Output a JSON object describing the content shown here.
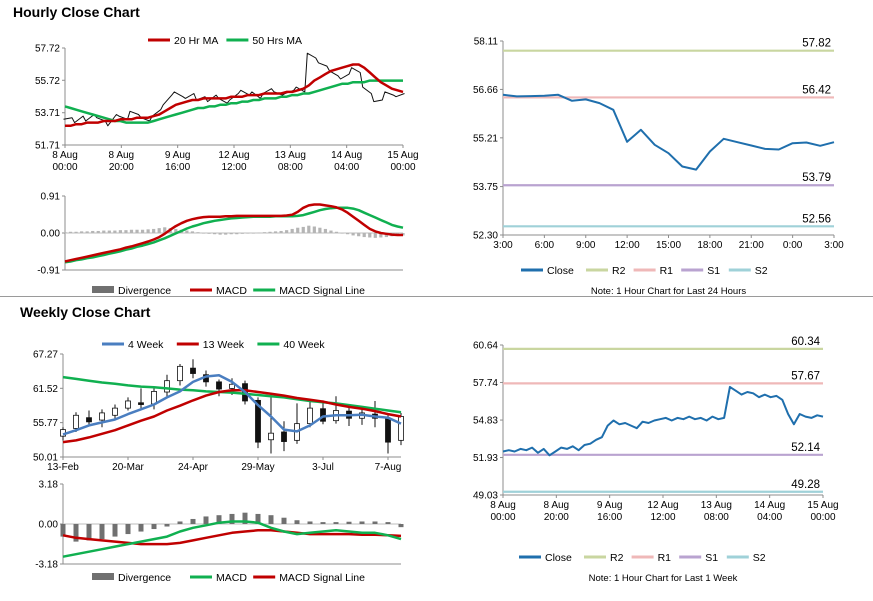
{
  "titles": {
    "hourly": "Hourly Close Chart",
    "weekly": "Weekly Close Chart"
  },
  "colors": {
    "ma_short": "#c00000",
    "ma_long": "#10b050",
    "week4": "#4a7ec0",
    "close": "#1f6fad",
    "r2": "#c9d6a0",
    "r1": "#efb8b8",
    "s1": "#b9a3d0",
    "s2": "#9fd1d8",
    "bar": "#707070"
  },
  "chart_data": [
    {
      "id": "hourly_price",
      "type": "line",
      "legend": [
        "20 Hr MA",
        "50 Hrs MA"
      ],
      "ylim": [
        51.71,
        57.72
      ],
      "yticks": [
        "57.72",
        "55.72",
        "53.71",
        "51.71"
      ],
      "xticks": [
        [
          "8 Aug",
          "00:00"
        ],
        [
          "8 Aug",
          "20:00"
        ],
        [
          "9 Aug",
          "16:00"
        ],
        [
          "12 Aug",
          "12:00"
        ],
        [
          "13 Aug",
          "08:00"
        ],
        [
          "14 Aug",
          "04:00"
        ],
        [
          "15 Aug",
          "00:00"
        ]
      ],
      "close": [
        53.3,
        53.4,
        53.1,
        53.5,
        53.2,
        53.6,
        53.4,
        53.2,
        52.9,
        53.6,
        53.5,
        53.3,
        53.8,
        53.6,
        53.4,
        53.2,
        53.5,
        53.9,
        54.2,
        54.8,
        55.0,
        54.7,
        54.6,
        54.9,
        54.5,
        54.7,
        54.4,
        54.8,
        54.6,
        54.3,
        54.5,
        54.9,
        55.1,
        54.8,
        55.0,
        54.6,
        54.9,
        55.2,
        55.0,
        54.8,
        54.9,
        55.1,
        55.3,
        55.0,
        57.4,
        57.1,
        56.8,
        56.6,
        56.3,
        56.0,
        55.8,
        56.1,
        56.5,
        56.2,
        55.3,
        54.9,
        54.4,
        54.5,
        55.0,
        54.8,
        54.7,
        54.9
      ],
      "series": [
        {
          "name": "20 Hr MA",
          "values": [
            52.9,
            52.9,
            53.0,
            53.0,
            53.1,
            53.1,
            53.1,
            53.2,
            53.2,
            53.2,
            53.3,
            53.3,
            53.3,
            53.4,
            53.4,
            53.4,
            53.5,
            53.6,
            53.8,
            54.0,
            54.2,
            54.3,
            54.4,
            54.5,
            54.5,
            54.6,
            54.6,
            54.6,
            54.6,
            54.6,
            54.7,
            54.7,
            54.7,
            54.8,
            54.8,
            54.8,
            54.9,
            54.9,
            54.9,
            54.9,
            55.0,
            55.0,
            55.1,
            55.2,
            55.4,
            55.7,
            55.9,
            56.1,
            56.3,
            56.4,
            56.5,
            56.6,
            56.7,
            56.7,
            56.5,
            56.2,
            55.9,
            55.6,
            55.4,
            55.2,
            55.1,
            55.0
          ]
        },
        {
          "name": "50 Hrs MA",
          "values": [
            54.1,
            54.0,
            53.9,
            53.8,
            53.7,
            53.6,
            53.5,
            53.4,
            53.3,
            53.2,
            53.2,
            53.1,
            53.1,
            53.1,
            53.1,
            53.1,
            53.2,
            53.3,
            53.4,
            53.5,
            53.6,
            53.7,
            53.8,
            53.9,
            54.0,
            54.0,
            54.1,
            54.1,
            54.2,
            54.2,
            54.3,
            54.3,
            54.4,
            54.4,
            54.5,
            54.5,
            54.6,
            54.6,
            54.6,
            54.7,
            54.7,
            54.8,
            54.8,
            54.9,
            54.9,
            55.0,
            55.1,
            55.2,
            55.3,
            55.4,
            55.5,
            55.5,
            55.6,
            55.6,
            55.6,
            55.7,
            55.7,
            55.7,
            55.7,
            55.7,
            55.7,
            55.7
          ]
        }
      ]
    },
    {
      "id": "hourly_macd",
      "type": "bar",
      "legend": [
        "Divergence",
        "MACD",
        "MACD Signal Line"
      ],
      "ylim": [
        -0.91,
        0.91
      ],
      "yticks": [
        "0.91",
        "0.00",
        "-0.91"
      ],
      "divergence": [
        0.02,
        0.03,
        0.03,
        0.04,
        0.04,
        0.05,
        0.05,
        0.06,
        0.06,
        0.06,
        0.07,
        0.07,
        0.08,
        0.08,
        0.08,
        0.09,
        0.1,
        0.12,
        0.14,
        0.12,
        0.1,
        0.08,
        0.06,
        0.04,
        0.02,
        0.0,
        -0.02,
        -0.03,
        -0.04,
        -0.04,
        -0.03,
        -0.03,
        -0.02,
        -0.01,
        0.0,
        0.01,
        0.02,
        0.03,
        0.04,
        0.05,
        0.07,
        0.1,
        0.13,
        0.15,
        0.18,
        0.16,
        0.13,
        0.1,
        0.06,
        0.03,
        0.0,
        -0.03,
        -0.06,
        -0.08,
        -0.1,
        -0.11,
        -0.12,
        -0.11,
        -0.1,
        -0.08,
        -0.07,
        -0.06
      ],
      "series": [
        {
          "name": "MACD",
          "values": [
            -0.7,
            -0.67,
            -0.64,
            -0.61,
            -0.58,
            -0.55,
            -0.52,
            -0.49,
            -0.46,
            -0.43,
            -0.4,
            -0.36,
            -0.33,
            -0.29,
            -0.25,
            -0.21,
            -0.16,
            -0.1,
            -0.02,
            0.08,
            0.17,
            0.24,
            0.3,
            0.34,
            0.37,
            0.39,
            0.4,
            0.4,
            0.4,
            0.41,
            0.41,
            0.42,
            0.42,
            0.42,
            0.42,
            0.42,
            0.42,
            0.42,
            0.42,
            0.42,
            0.43,
            0.45,
            0.52,
            0.62,
            0.68,
            0.7,
            0.7,
            0.68,
            0.66,
            0.63,
            0.58,
            0.5,
            0.4,
            0.3,
            0.2,
            0.1,
            0.04,
            0.0,
            -0.02,
            -0.04,
            -0.05,
            -0.05
          ]
        },
        {
          "name": "MACD Signal Line",
          "values": [
            -0.72,
            -0.7,
            -0.67,
            -0.65,
            -0.62,
            -0.6,
            -0.57,
            -0.54,
            -0.51,
            -0.48,
            -0.45,
            -0.41,
            -0.38,
            -0.34,
            -0.31,
            -0.27,
            -0.23,
            -0.18,
            -0.13,
            -0.07,
            -0.01,
            0.05,
            0.11,
            0.16,
            0.2,
            0.24,
            0.27,
            0.3,
            0.32,
            0.34,
            0.36,
            0.37,
            0.38,
            0.39,
            0.4,
            0.4,
            0.4,
            0.4,
            0.41,
            0.41,
            0.41,
            0.41,
            0.42,
            0.44,
            0.48,
            0.52,
            0.56,
            0.59,
            0.61,
            0.62,
            0.62,
            0.62,
            0.6,
            0.56,
            0.5,
            0.44,
            0.38,
            0.32,
            0.26,
            0.2,
            0.16,
            0.13
          ]
        }
      ]
    },
    {
      "id": "hourly_levels",
      "type": "line",
      "note": "Note: 1 Hour Chart for Last 24 Hours",
      "legend": [
        "Close",
        "R2",
        "R1",
        "S1",
        "S2"
      ],
      "ylim": [
        52.3,
        58.11
      ],
      "yticks": [
        "58.11",
        "56.66",
        "55.21",
        "53.75",
        "52.30"
      ],
      "xticks": [
        "3:00",
        "6:00",
        "9:00",
        "12:00",
        "15:00",
        "18:00",
        "21:00",
        "0:00",
        "3:00"
      ],
      "x": [
        0,
        1,
        2,
        3,
        4,
        5,
        6,
        7,
        8,
        9,
        10,
        11,
        12,
        13,
        14,
        15,
        16,
        17,
        18,
        19,
        20,
        21,
        22,
        23,
        24
      ],
      "close": [
        56.5,
        56.45,
        56.46,
        56.47,
        56.5,
        56.32,
        56.36,
        56.25,
        56.05,
        55.09,
        55.45,
        55.0,
        54.75,
        54.35,
        54.26,
        54.8,
        55.18,
        55.08,
        54.98,
        54.88,
        54.86,
        55.05,
        55.07,
        54.97,
        55.08
      ],
      "levels": {
        "R2": 57.82,
        "R1": 56.42,
        "S1": 53.79,
        "S2": 52.56
      },
      "level_labels": [
        "57.82",
        "56.42",
        "53.79",
        "52.56"
      ]
    },
    {
      "id": "weekly_price",
      "type": "line",
      "legend": [
        "4 Week",
        "13 Week",
        "40 Week"
      ],
      "ylim": [
        50.01,
        67.27
      ],
      "yticks": [
        "67.27",
        "61.52",
        "55.77",
        "50.01"
      ],
      "xticks": [
        "13-Feb",
        "20-Mar",
        "24-Apr",
        "29-May",
        "3-Jul",
        "7-Aug"
      ],
      "candles": [
        [
          53.5,
          54.6,
          52.8,
          55.0
        ],
        [
          54.8,
          57.0,
          54.2,
          57.5
        ],
        [
          56.6,
          55.9,
          55.2,
          57.8
        ],
        [
          56.2,
          57.4,
          55.0,
          58.0
        ],
        [
          57.0,
          58.2,
          56.2,
          58.8
        ],
        [
          58.2,
          59.4,
          57.8,
          60.0
        ],
        [
          59.1,
          58.8,
          58.1,
          61.5
        ],
        [
          58.9,
          61.0,
          58.0,
          61.6
        ],
        [
          60.9,
          62.8,
          60.0,
          63.8
        ],
        [
          62.8,
          65.2,
          62.0,
          65.6
        ],
        [
          64.9,
          64.0,
          63.2,
          66.4
        ],
        [
          63.8,
          62.6,
          61.8,
          64.5
        ],
        [
          62.6,
          61.4,
          60.2,
          63.0
        ],
        [
          61.5,
          62.2,
          60.4,
          63.2
        ],
        [
          62.3,
          59.4,
          58.8,
          62.8
        ],
        [
          59.5,
          52.5,
          51.5,
          60.0
        ],
        [
          52.9,
          54.0,
          50.6,
          60.8
        ],
        [
          54.2,
          52.6,
          51.0,
          56.0
        ],
        [
          52.8,
          55.6,
          52.2,
          59.0
        ],
        [
          55.6,
          58.2,
          55.0,
          59.3
        ],
        [
          58.1,
          56.0,
          55.5,
          59.5
        ],
        [
          56.1,
          57.8,
          55.6,
          60.2
        ],
        [
          57.7,
          56.5,
          55.2,
          58.6
        ],
        [
          56.5,
          57.4,
          55.4,
          58.4
        ],
        [
          57.2,
          56.5,
          55.0,
          59.4
        ],
        [
          56.5,
          52.5,
          50.6,
          57.0
        ],
        [
          52.8,
          56.8,
          52.0,
          57.4
        ]
      ],
      "series": [
        {
          "name": "4 Week",
          "values": [
            53.8,
            54.5,
            55.3,
            55.8,
            56.3,
            57.2,
            58.0,
            58.8,
            60.0,
            61.0,
            62.6,
            63.5,
            63.7,
            62.6,
            60.9,
            58.7,
            56.8,
            54.6,
            54.3,
            55.3,
            56.8,
            57.0,
            57.0,
            57.1,
            56.8,
            56.6,
            55.6
          ]
        },
        {
          "name": "13 Week",
          "values": [
            52.5,
            52.8,
            53.3,
            53.9,
            54.5,
            55.3,
            56.1,
            56.8,
            57.8,
            58.6,
            59.5,
            60.3,
            60.9,
            61.2,
            61.2,
            60.9,
            60.6,
            60.3,
            59.9,
            59.6,
            59.3,
            58.8,
            58.4,
            58.1,
            57.7,
            57.2,
            56.8
          ]
        },
        {
          "name": "40 Week",
          "values": [
            63.4,
            63.1,
            62.8,
            62.5,
            62.3,
            62.0,
            61.8,
            61.7,
            61.5,
            61.3,
            61.2,
            61.0,
            60.9,
            60.8,
            60.6,
            60.4,
            60.2,
            60.0,
            59.7,
            59.4,
            59.2,
            59.0,
            58.7,
            58.4,
            58.1,
            57.8,
            57.5
          ]
        }
      ]
    },
    {
      "id": "weekly_macd",
      "type": "bar",
      "legend": [
        "Divergence",
        "MACD",
        "MACD Signal Line"
      ],
      "ylim": [
        -3.18,
        3.18
      ],
      "yticks": [
        "3.18",
        "0.00",
        "-3.18"
      ],
      "divergence": [
        -1.0,
        -1.4,
        -1.3,
        -1.2,
        -1.0,
        -0.8,
        -0.6,
        -0.4,
        -0.2,
        0.2,
        0.4,
        0.6,
        0.7,
        0.8,
        0.9,
        0.8,
        0.7,
        0.5,
        0.3,
        0.2,
        0.15,
        0.15,
        0.18,
        0.2,
        0.2,
        0.15,
        -0.25
      ],
      "series": [
        {
          "name": "MACD",
          "values": [
            -2.6,
            -2.4,
            -2.2,
            -2.0,
            -1.8,
            -1.6,
            -1.4,
            -1.2,
            -1.0,
            -0.6,
            -0.3,
            -0.1,
            0.1,
            0.2,
            0.2,
            0.1,
            -0.3,
            -0.6,
            -0.8,
            -0.7,
            -0.6,
            -0.5,
            -0.6,
            -0.7,
            -0.7,
            -0.9,
            -1.2
          ]
        },
        {
          "name": "MACD Signal Line",
          "values": [
            -0.9,
            -1.1,
            -1.2,
            -1.3,
            -1.4,
            -1.5,
            -1.6,
            -1.6,
            -1.6,
            -1.5,
            -1.3,
            -1.1,
            -0.9,
            -0.7,
            -0.6,
            -0.5,
            -0.5,
            -0.6,
            -0.7,
            -0.8,
            -0.8,
            -0.8,
            -0.8,
            -0.85,
            -0.85,
            -0.9,
            -0.95
          ]
        }
      ]
    },
    {
      "id": "weekly_levels",
      "type": "line",
      "note": "Note: 1 Hour Chart for Last 1 Week",
      "legend": [
        "Close",
        "R2",
        "R1",
        "S1",
        "S2"
      ],
      "ylim": [
        49.03,
        60.64
      ],
      "yticks": [
        "60.64",
        "57.74",
        "54.83",
        "51.93",
        "49.03"
      ],
      "xticks": [
        [
          "8 Aug",
          "00:00"
        ],
        [
          "8 Aug",
          "20:00"
        ],
        [
          "9 Aug",
          "16:00"
        ],
        [
          "12 Aug",
          "12:00"
        ],
        [
          "13 Aug",
          "08:00"
        ],
        [
          "14 Aug",
          "04:00"
        ],
        [
          "15 Aug",
          "00:00"
        ]
      ],
      "close": [
        52.4,
        52.5,
        52.4,
        52.6,
        52.5,
        52.7,
        52.3,
        52.6,
        52.1,
        52.4,
        52.7,
        52.6,
        52.8,
        52.5,
        52.9,
        53.0,
        53.3,
        53.5,
        54.4,
        54.8,
        54.5,
        54.6,
        54.4,
        54.2,
        54.7,
        54.6,
        54.8,
        54.9,
        55.0,
        54.8,
        55.0,
        54.9,
        55.1,
        54.9,
        55.0,
        54.8,
        55.1,
        54.9,
        55.0,
        57.4,
        57.1,
        56.8,
        57.0,
        56.9,
        56.6,
        56.8,
        56.6,
        56.7,
        56.4,
        55.3,
        54.5,
        55.3,
        55.1,
        55.0,
        55.2,
        55.1
      ],
      "levels": {
        "R2": 60.34,
        "R1": 57.67,
        "S1": 52.14,
        "S2": 49.28
      },
      "level_labels": [
        "60.34",
        "57.67",
        "52.14",
        "49.28"
      ]
    }
  ]
}
